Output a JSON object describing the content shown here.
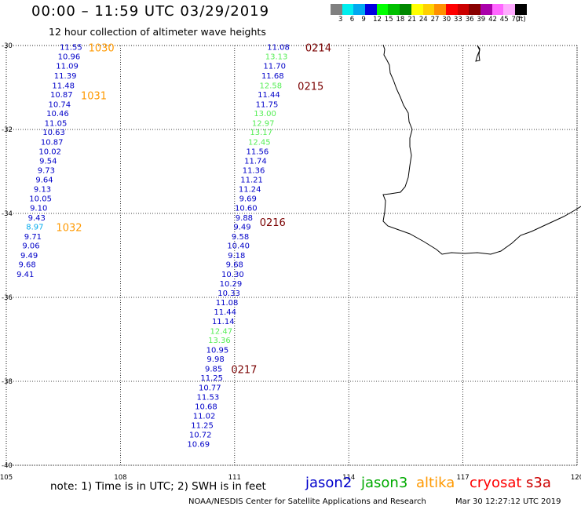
{
  "header": {
    "title": "00:00 – 11:59 UTC 03/29/2019",
    "subtitle": "12 hour collection of altimeter wave heights"
  },
  "legend": {
    "unit": "(ft)",
    "swatches": [
      {
        "color": "#808080",
        "label": "3"
      },
      {
        "color": "#00eeee",
        "label": "6"
      },
      {
        "color": "#00a8f0",
        "label": "9"
      },
      {
        "color": "#0000e0",
        "label": "12"
      },
      {
        "color": "#00ff00",
        "label": "15"
      },
      {
        "color": "#00c000",
        "label": "18"
      },
      {
        "color": "#008800",
        "label": "21"
      },
      {
        "color": "#ffff00",
        "label": "24"
      },
      {
        "color": "#ffd000",
        "label": "27"
      },
      {
        "color": "#ff9000",
        "label": "30"
      },
      {
        "color": "#ff0000",
        "label": "33"
      },
      {
        "color": "#cc0000",
        "label": "36"
      },
      {
        "color": "#880000",
        "label": "39"
      },
      {
        "color": "#aa00aa",
        "label": "42"
      },
      {
        "color": "#ff66ff",
        "label": "45"
      },
      {
        "color": "#ffaaff",
        "label": "70"
      },
      {
        "color": "#000000",
        "label": ""
      }
    ]
  },
  "map": {
    "lon_range": [
      105,
      120
    ],
    "lat_range": [
      -30,
      -40
    ],
    "lon_ticks": [
      "105",
      "108",
      "111",
      "114",
      "117",
      "120"
    ],
    "lat_ticks": [
      {
        "lat": -30,
        "label": "-30"
      },
      {
        "lat": -32,
        "label": "-32"
      },
      {
        "lat": -34,
        "label": "-34"
      },
      {
        "lat": -36,
        "label": "-36"
      },
      {
        "lat": -38,
        "label": "-38"
      },
      {
        "lat": -40,
        "label": "-40"
      }
    ],
    "grid": true
  },
  "chart_data": {
    "type": "scatter",
    "colors": {
      "blue": "#0000c8",
      "green": "#55ee55",
      "cyan": "#00aaee",
      "orange": "#ff9900",
      "maroon": "#7a0000"
    },
    "points": [
      {
        "lon": 106.7,
        "lat": -30.03,
        "value": "11.55",
        "color": "blue"
      },
      {
        "lon": 106.65,
        "lat": -30.25,
        "value": "10.96",
        "color": "blue"
      },
      {
        "lon": 106.6,
        "lat": -30.48,
        "value": "11.09",
        "color": "blue"
      },
      {
        "lon": 106.55,
        "lat": -30.71,
        "value": "11.39",
        "color": "blue"
      },
      {
        "lon": 106.5,
        "lat": -30.94,
        "value": "11.48",
        "color": "blue"
      },
      {
        "lon": 106.45,
        "lat": -31.16,
        "value": "10.87",
        "color": "blue"
      },
      {
        "lon": 106.4,
        "lat": -31.39,
        "value": "10.74",
        "color": "blue"
      },
      {
        "lon": 106.35,
        "lat": -31.61,
        "value": "10.46",
        "color": "blue"
      },
      {
        "lon": 106.3,
        "lat": -31.84,
        "value": "11.05",
        "color": "blue"
      },
      {
        "lon": 106.25,
        "lat": -32.06,
        "value": "10.63",
        "color": "blue"
      },
      {
        "lon": 106.2,
        "lat": -32.29,
        "value": "10.87",
        "color": "blue"
      },
      {
        "lon": 106.15,
        "lat": -32.51,
        "value": "10.02",
        "color": "blue"
      },
      {
        "lon": 106.1,
        "lat": -32.74,
        "value": "9.54",
        "color": "blue"
      },
      {
        "lon": 106.05,
        "lat": -32.96,
        "value": "9.73",
        "color": "blue"
      },
      {
        "lon": 106.0,
        "lat": -33.19,
        "value": "9.64",
        "color": "blue"
      },
      {
        "lon": 105.95,
        "lat": -33.41,
        "value": "9.13",
        "color": "blue"
      },
      {
        "lon": 105.9,
        "lat": -33.64,
        "value": "10.05",
        "color": "blue"
      },
      {
        "lon": 105.85,
        "lat": -33.86,
        "value": "9.10",
        "color": "blue"
      },
      {
        "lon": 105.8,
        "lat": -34.09,
        "value": "9.43",
        "color": "blue"
      },
      {
        "lon": 105.75,
        "lat": -34.31,
        "value": "8.97",
        "color": "cyan"
      },
      {
        "lon": 105.7,
        "lat": -34.54,
        "value": "9.71",
        "color": "blue"
      },
      {
        "lon": 105.65,
        "lat": -34.76,
        "value": "9.06",
        "color": "blue"
      },
      {
        "lon": 105.6,
        "lat": -34.99,
        "value": "9.49",
        "color": "blue"
      },
      {
        "lon": 105.55,
        "lat": -35.21,
        "value": "9.68",
        "color": "blue"
      },
      {
        "lon": 105.5,
        "lat": -35.44,
        "value": "9.41",
        "color": "blue"
      },
      {
        "lon": 112.15,
        "lat": -30.03,
        "value": "11.08",
        "color": "blue"
      },
      {
        "lon": 112.1,
        "lat": -30.25,
        "value": "13.13",
        "color": "green"
      },
      {
        "lon": 112.05,
        "lat": -30.48,
        "value": "11.70",
        "color": "blue"
      },
      {
        "lon": 112.0,
        "lat": -30.71,
        "value": "11.68",
        "color": "blue"
      },
      {
        "lon": 111.95,
        "lat": -30.94,
        "value": "12.58",
        "color": "green"
      },
      {
        "lon": 111.9,
        "lat": -31.16,
        "value": "11.44",
        "color": "blue"
      },
      {
        "lon": 111.85,
        "lat": -31.39,
        "value": "11.75",
        "color": "blue"
      },
      {
        "lon": 111.8,
        "lat": -31.61,
        "value": "13.00",
        "color": "green"
      },
      {
        "lon": 111.75,
        "lat": -31.84,
        "value": "12.97",
        "color": "green"
      },
      {
        "lon": 111.7,
        "lat": -32.06,
        "value": "13.17",
        "color": "green"
      },
      {
        "lon": 111.65,
        "lat": -32.29,
        "value": "12.45",
        "color": "green"
      },
      {
        "lon": 111.6,
        "lat": -32.51,
        "value": "11.56",
        "color": "blue"
      },
      {
        "lon": 111.55,
        "lat": -32.74,
        "value": "11.74",
        "color": "blue"
      },
      {
        "lon": 111.5,
        "lat": -32.96,
        "value": "11.36",
        "color": "blue"
      },
      {
        "lon": 111.45,
        "lat": -33.19,
        "value": "11.21",
        "color": "blue"
      },
      {
        "lon": 111.4,
        "lat": -33.41,
        "value": "11.24",
        "color": "blue"
      },
      {
        "lon": 111.35,
        "lat": -33.64,
        "value": "9.69",
        "color": "blue"
      },
      {
        "lon": 111.3,
        "lat": -33.86,
        "value": "10.60",
        "color": "blue"
      },
      {
        "lon": 111.25,
        "lat": -34.09,
        "value": "9.88",
        "color": "blue"
      },
      {
        "lon": 111.2,
        "lat": -34.31,
        "value": "9.49",
        "color": "blue"
      },
      {
        "lon": 111.15,
        "lat": -34.54,
        "value": "9.58",
        "color": "blue"
      },
      {
        "lon": 111.1,
        "lat": -34.76,
        "value": "10.40",
        "color": "blue"
      },
      {
        "lon": 111.05,
        "lat": -34.99,
        "value": "9.18",
        "color": "blue"
      },
      {
        "lon": 111.0,
        "lat": -35.21,
        "value": "9.68",
        "color": "blue"
      },
      {
        "lon": 110.95,
        "lat": -35.44,
        "value": "10.30",
        "color": "blue"
      },
      {
        "lon": 110.9,
        "lat": -35.66,
        "value": "10.29",
        "color": "blue"
      },
      {
        "lon": 110.85,
        "lat": -35.89,
        "value": "10.33",
        "color": "blue"
      },
      {
        "lon": 110.8,
        "lat": -36.11,
        "value": "11.08",
        "color": "blue"
      },
      {
        "lon": 110.75,
        "lat": -36.34,
        "value": "11.44",
        "color": "blue"
      },
      {
        "lon": 110.7,
        "lat": -36.56,
        "value": "11.14",
        "color": "blue"
      },
      {
        "lon": 110.65,
        "lat": -36.79,
        "value": "12.47",
        "color": "green"
      },
      {
        "lon": 110.6,
        "lat": -37.01,
        "value": "13.36",
        "color": "green"
      },
      {
        "lon": 110.55,
        "lat": -37.24,
        "value": "10.95",
        "color": "blue"
      },
      {
        "lon": 110.5,
        "lat": -37.46,
        "value": "9.98",
        "color": "blue"
      },
      {
        "lon": 110.45,
        "lat": -37.69,
        "value": "9.85",
        "color": "blue"
      },
      {
        "lon": 110.4,
        "lat": -37.91,
        "value": "11.25",
        "color": "blue"
      },
      {
        "lon": 110.35,
        "lat": -38.14,
        "value": "10.77",
        "color": "blue"
      },
      {
        "lon": 110.3,
        "lat": -38.36,
        "value": "11.53",
        "color": "blue"
      },
      {
        "lon": 110.25,
        "lat": -38.59,
        "value": "10.68",
        "color": "blue"
      },
      {
        "lon": 110.2,
        "lat": -38.81,
        "value": "11.02",
        "color": "blue"
      },
      {
        "lon": 110.15,
        "lat": -39.04,
        "value": "11.25",
        "color": "blue"
      },
      {
        "lon": 110.1,
        "lat": -39.26,
        "value": "10.72",
        "color": "blue"
      },
      {
        "lon": 110.05,
        "lat": -39.49,
        "value": "10.69",
        "color": "blue"
      }
    ],
    "time_labels": [
      {
        "lon": 107.5,
        "lat": -30.05,
        "text": "1030",
        "color": "orange"
      },
      {
        "lon": 107.3,
        "lat": -31.19,
        "text": "1031",
        "color": "orange"
      },
      {
        "lon": 106.65,
        "lat": -34.33,
        "text": "1032",
        "color": "orange"
      },
      {
        "lon": 113.2,
        "lat": -30.05,
        "text": "0214",
        "color": "maroon"
      },
      {
        "lon": 113.0,
        "lat": -30.96,
        "text": "0215",
        "color": "maroon"
      },
      {
        "lon": 112.0,
        "lat": -34.21,
        "text": "0216",
        "color": "maroon"
      },
      {
        "lon": 111.25,
        "lat": -37.71,
        "text": "0217",
        "color": "maroon"
      }
    ]
  },
  "footer": {
    "note": "note:  1) Time is in UTC;  2) SWH is in feet",
    "satellites": [
      {
        "name": "jason2",
        "color": "#0000cc"
      },
      {
        "name": "jason3",
        "color": "#00aa00"
      },
      {
        "name": "altika",
        "color": "#ff9900"
      },
      {
        "name": "cryosat",
        "color": "#ff0000"
      },
      {
        "name": "s3a",
        "color": "#cc0000"
      }
    ],
    "credit": "NOAA/NESDIS Center for Satellite Applications and Research",
    "generated": "Mar 30 12:27:12 UTC 2019"
  }
}
